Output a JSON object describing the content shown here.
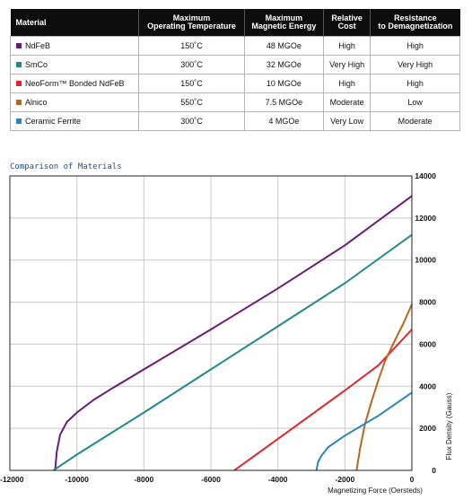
{
  "table": {
    "headers": [
      "Material",
      "Maximum\nOperating Temperature",
      "Maximum\nMagnetic Energy",
      "Relative\nCost",
      "Resistance\nto Demagnetization"
    ],
    "rows": [
      {
        "material": "NdFeB",
        "temp": "150˚C",
        "energy": "48 MGOe",
        "cost": "High",
        "resistance": "High",
        "color": "#6a1a7a"
      },
      {
        "material": "SmCo",
        "temp": "300˚C",
        "energy": "32 MGOe",
        "cost": "Very High",
        "resistance": "Very High",
        "color": "#1f8a8c"
      },
      {
        "material": "NeoForm™ Bonded NdFeB",
        "temp": "150˚C",
        "energy": "10 MGOe",
        "cost": "High",
        "resistance": "High",
        "color": "#e0242b"
      },
      {
        "material": "Alnico",
        "temp": "550˚C",
        "energy": "7.5 MGOe",
        "cost": "Moderate",
        "resistance": "Low",
        "color": "#b8651e"
      },
      {
        "material": "Ceramic Ferrite",
        "temp": "300˚C",
        "energy": "4 MGOe",
        "cost": "Very Low",
        "resistance": "Moderate",
        "color": "#2a86b8"
      }
    ]
  },
  "chart_data": {
    "type": "line",
    "title": "Comparison of Materials",
    "xlabel": "Magnetizing Force (Oersteds)",
    "ylabel": "Flux Density (Gauss)",
    "xlim": [
      -12000,
      0
    ],
    "ylim": [
      0,
      14000
    ],
    "x_ticks": [
      "-12000",
      "-10000",
      "-8000",
      "-6000",
      "-4000",
      "-2000",
      "0"
    ],
    "y_ticks": [
      "0",
      "2000",
      "4000",
      "6000",
      "8000",
      "10000",
      "12000",
      "14000"
    ],
    "grid": true,
    "series": [
      {
        "name": "NdFeB",
        "color": "#6a1a7a",
        "points": [
          [
            -10650,
            0
          ],
          [
            -10600,
            900
          ],
          [
            -10500,
            1700
          ],
          [
            -10300,
            2300
          ],
          [
            -10000,
            2750
          ],
          [
            -9500,
            3350
          ],
          [
            -9000,
            3850
          ],
          [
            -8000,
            4800
          ],
          [
            -6000,
            6700
          ],
          [
            -4000,
            8650
          ],
          [
            -2000,
            10700
          ],
          [
            0,
            13050
          ]
        ]
      },
      {
        "material_ref": "SmCo",
        "name": "SmCo",
        "color": "#1f8a8c",
        "points": [
          [
            -10700,
            0
          ],
          [
            -10000,
            750
          ],
          [
            -8000,
            2750
          ],
          [
            -6000,
            4800
          ],
          [
            -4000,
            6850
          ],
          [
            -2000,
            8900
          ],
          [
            0,
            11200
          ]
        ]
      },
      {
        "name": "NeoForm™ Bonded NdFeB",
        "color": "#e0242b",
        "points": [
          [
            -5300,
            0
          ],
          [
            -4000,
            1500
          ],
          [
            -2000,
            3800
          ],
          [
            -1000,
            5000
          ],
          [
            0,
            6700
          ]
        ]
      },
      {
        "name": "Alnico",
        "color": "#b8651e",
        "points": [
          [
            -1650,
            0
          ],
          [
            -1550,
            1000
          ],
          [
            -1400,
            2200
          ],
          [
            -1200,
            3300
          ],
          [
            -1000,
            4300
          ],
          [
            -800,
            5200
          ],
          [
            -500,
            6200
          ],
          [
            -250,
            7000
          ],
          [
            0,
            7900
          ]
        ]
      },
      {
        "name": "Ceramic Ferrite",
        "color": "#2a86b8",
        "points": [
          [
            -2850,
            0
          ],
          [
            -2800,
            400
          ],
          [
            -2700,
            700
          ],
          [
            -2500,
            1100
          ],
          [
            -2000,
            1650
          ],
          [
            -1000,
            2600
          ],
          [
            0,
            3700
          ]
        ]
      }
    ]
  }
}
